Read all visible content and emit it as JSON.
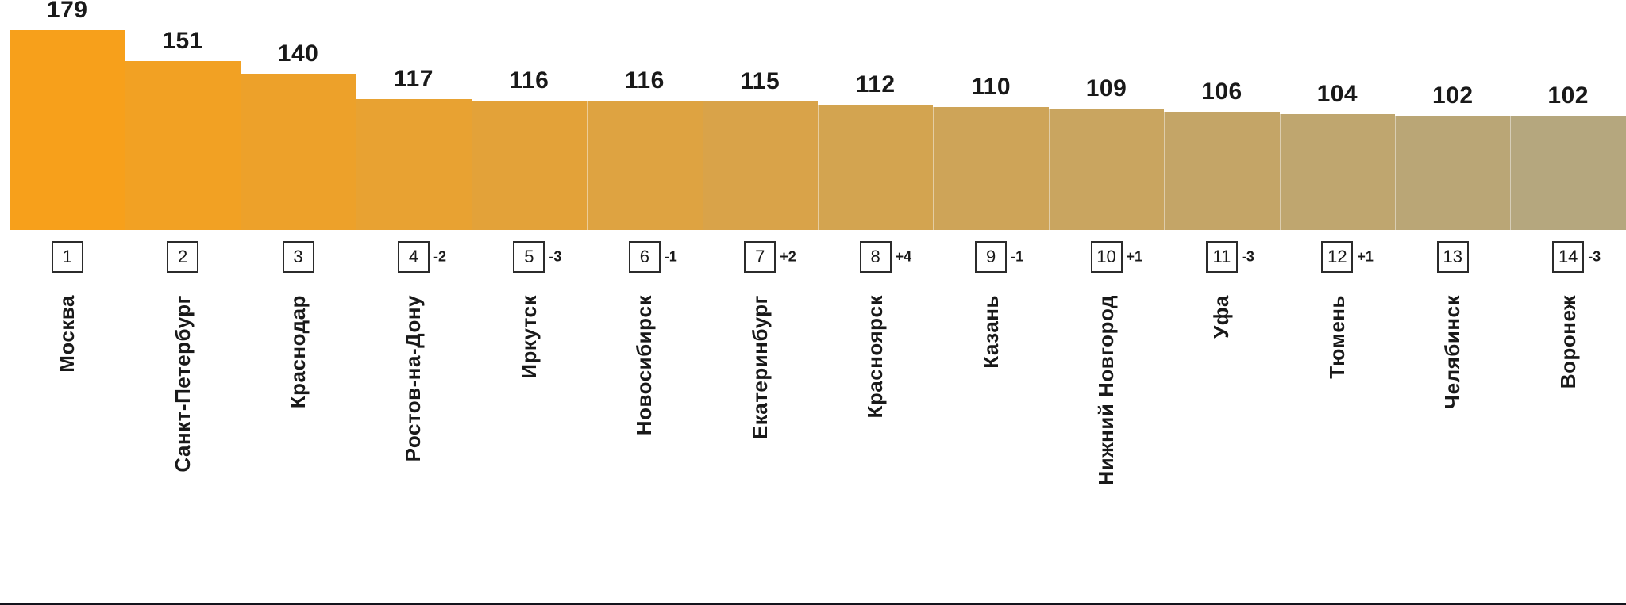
{
  "chart_data": {
    "type": "bar",
    "title": "",
    "xlabel": "",
    "ylabel": "",
    "categories": [
      "Москва",
      "Санкт-Петербург",
      "Краснодар",
      "Ростов-на-Дону",
      "Иркутск",
      "Новосибирск",
      "Екатеринбург",
      "Красноярск",
      "Казань",
      "Нижний Новгород",
      "Уфа",
      "Тюмень",
      "Челябинск",
      "Воронеж"
    ],
    "values": [
      179,
      151,
      140,
      117,
      116,
      116,
      115,
      112,
      110,
      109,
      106,
      104,
      102,
      102
    ],
    "ranks": [
      1,
      2,
      3,
      4,
      5,
      6,
      7,
      8,
      9,
      10,
      11,
      12,
      13,
      14
    ],
    "rank_changes": [
      "",
      "",
      "",
      "-2",
      "-3",
      "-1",
      "+2",
      "+4",
      "-1",
      "+1",
      "-3",
      "+1",
      "",
      "-3"
    ],
    "ylim": [
      0,
      179
    ],
    "grid": false,
    "legend": false,
    "bar_color_left": "#F7A01B",
    "bar_color_right": "#B5A77E",
    "value_label_color": "#191919",
    "baseline_axis": false
  }
}
